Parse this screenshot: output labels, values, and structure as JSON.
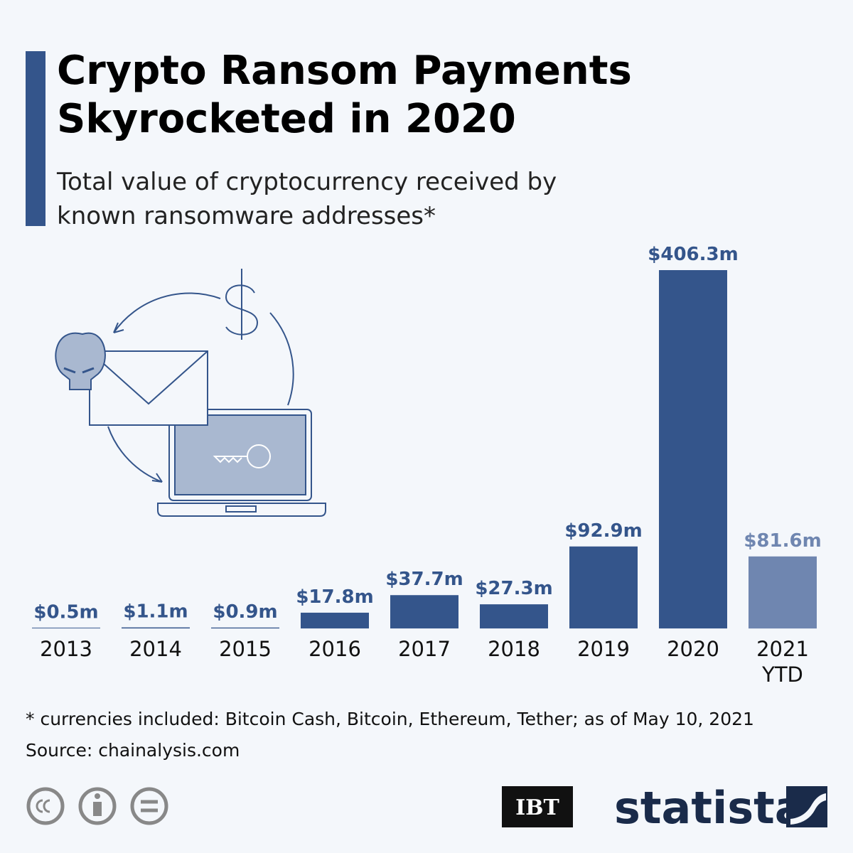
{
  "chart_data": {
    "type": "bar",
    "title": "Crypto Ransom Payments Skyrocketed in 2020",
    "subtitle": "Total value of cryptocurrency received by known ransomware addresses*",
    "categories": [
      "2013",
      "2014",
      "2015",
      "2016",
      "2017",
      "2018",
      "2019",
      "2020",
      "2021 YTD"
    ],
    "values": [
      0.5,
      1.1,
      0.9,
      17.8,
      37.7,
      27.3,
      92.9,
      406.3,
      81.6
    ],
    "value_labels": [
      "$0.5m",
      "$1.1m",
      "$0.9m",
      "$17.8m",
      "$37.7m",
      "$27.3m",
      "$92.9m",
      "$406.3m",
      "$81.6m"
    ],
    "colors": [
      "#34558b",
      "#34558b",
      "#34558b",
      "#34558b",
      "#34558b",
      "#34558b",
      "#34558b",
      "#34558b",
      "#6f86b0"
    ],
    "footnote": "* currencies included: Bitcoin Cash, Bitcoin, Ethereum, Tether; as of May 10, 2021",
    "source": "Source: chainalysis.com",
    "logos": [
      "IBT",
      "statista"
    ]
  }
}
